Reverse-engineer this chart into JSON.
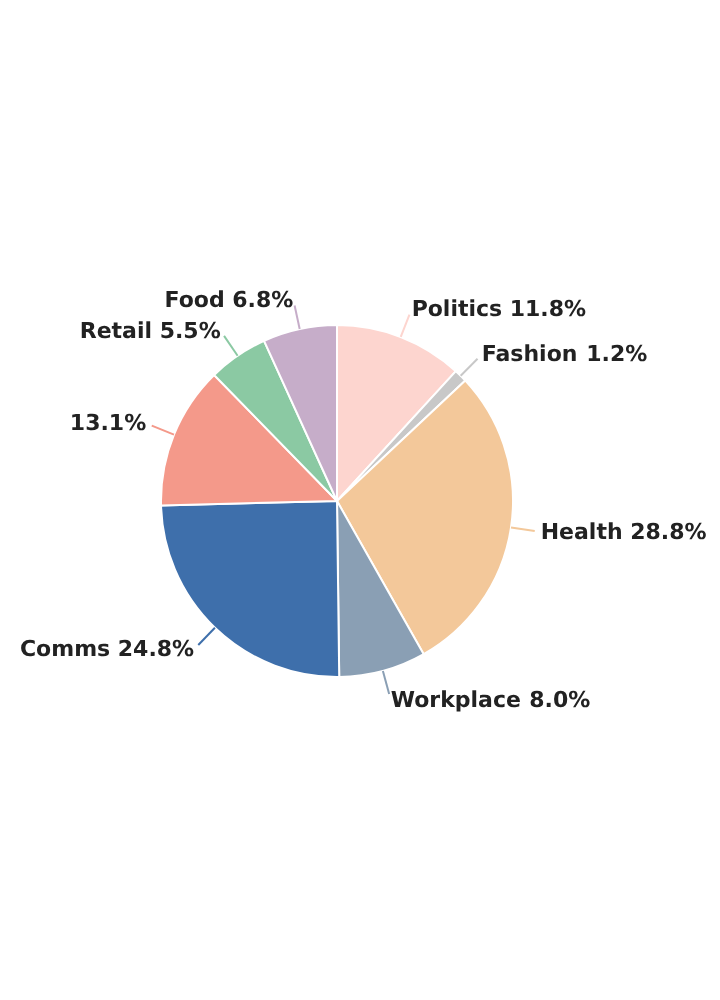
{
  "chart_data": {
    "type": "pie",
    "categories": [
      "Politics",
      "Fashion",
      "Health",
      "Workplace",
      "Comms",
      null,
      "Retail",
      "Food"
    ],
    "values": [
      11.8,
      1.2,
      28.8,
      8.0,
      24.8,
      13.1,
      5.5,
      6.8
    ],
    "colors": [
      "#fdd5cf",
      "#c8c8c8",
      "#f3c89a",
      "#8a9fb4",
      "#3e6fab",
      "#f4998a",
      "#8bc9a3",
      "#c6adc9"
    ],
    "value_labels": [
      "11.8%",
      "1.2%",
      "28.8%",
      "8.0%",
      "24.8%",
      "13.1%",
      "5.5%",
      "6.8%"
    ]
  }
}
